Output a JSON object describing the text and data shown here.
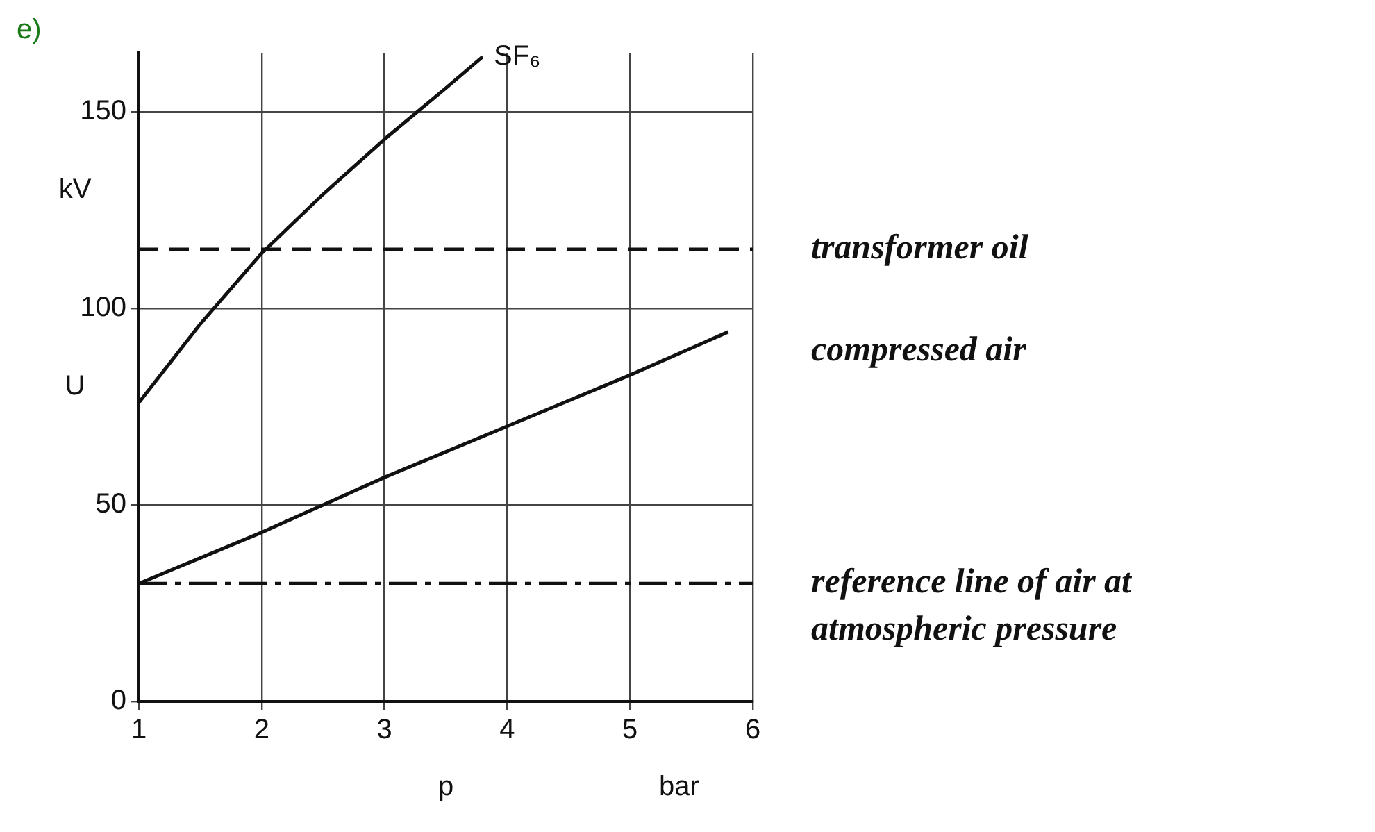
{
  "chart_data": {
    "type": "line",
    "xlabel": "p",
    "ylabel": "U",
    "annotations": [
      "e)",
      "kV",
      "bar"
    ],
    "xlim": [
      1,
      6
    ],
    "xticks": [
      1,
      2,
      3,
      4,
      5,
      6
    ],
    "ylim": [
      0,
      165
    ],
    "yticks": [
      0,
      50,
      100,
      150
    ],
    "grid": true,
    "legend": false,
    "marker": "none",
    "series": [
      {
        "name": "SF₆",
        "color": "#111111",
        "x": [
          1,
          1.5,
          2,
          2.5,
          3,
          3.5,
          3.8
        ],
        "values": [
          76,
          96,
          114,
          129,
          143,
          156,
          164
        ]
      },
      {
        "name": "compressed air",
        "color": "#111111",
        "x": [
          1,
          2,
          3,
          4,
          5,
          5.8
        ],
        "values": [
          30,
          43,
          57,
          70,
          83,
          94
        ]
      }
    ],
    "ref_lines": [
      {
        "axis": "y",
        "value": 115,
        "label": "transformer oil",
        "color": "#111111",
        "line_style": "dashed"
      },
      {
        "axis": "y",
        "value": 30,
        "label": "reference line of air at atmospheric pressure",
        "color": "#111111",
        "line_style": "dashdot"
      }
    ]
  }
}
